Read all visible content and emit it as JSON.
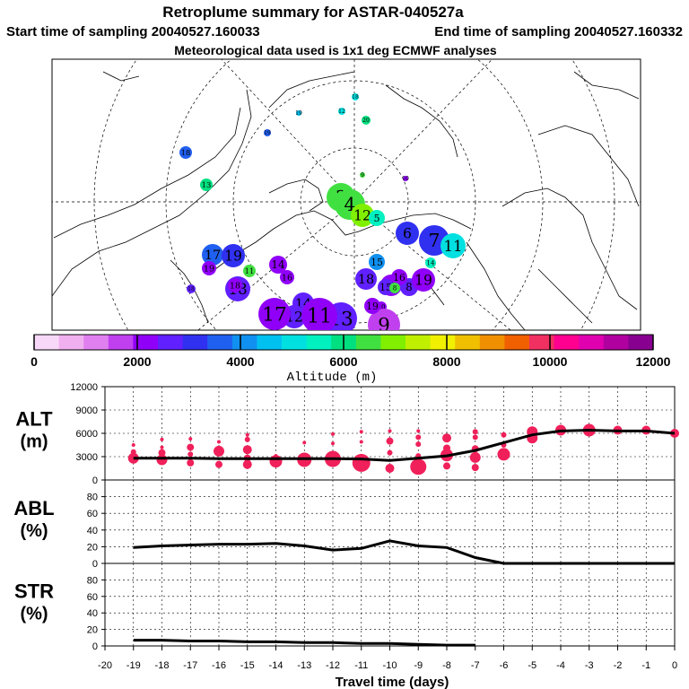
{
  "header": {
    "title": "Retroplume summary for ASTAR-040527a",
    "start": "Start time of sampling 20040527.160033",
    "end": "End time of sampling 20040527.160332",
    "met": "Meteorological data used is 1x1 deg ECMWF analyses"
  },
  "map": {
    "clusters": [
      {
        "label": "18",
        "alt": 5200
      },
      {
        "label": "12",
        "alt": 5000
      },
      {
        "label": "19",
        "alt": 4600
      },
      {
        "label": "20",
        "alt": 6400
      },
      {
        "label": "19",
        "alt": 3800
      },
      {
        "label": "18",
        "alt": 3800
      },
      {
        "label": "13",
        "alt": 6200
      },
      {
        "label": "3",
        "alt": 6600
      },
      {
        "label": "4",
        "alt": 6500
      },
      {
        "label": "12",
        "alt": 7100
      },
      {
        "label": "5",
        "alt": 5600
      },
      {
        "label": "6",
        "alt": 3200
      },
      {
        "label": "7",
        "alt": 3400
      },
      {
        "label": "11",
        "alt": 5000
      },
      {
        "label": "14",
        "alt": 5600
      },
      {
        "label": "15",
        "alt": 4000
      },
      {
        "label": "17",
        "alt": 3500
      },
      {
        "label": "19",
        "alt": 3200
      },
      {
        "label": "18",
        "alt": 2700
      },
      {
        "label": "11",
        "alt": 6600
      },
      {
        "label": "16",
        "alt": 2400
      },
      {
        "label": "16",
        "alt": 2400
      },
      {
        "label": "8",
        "alt": 2700
      },
      {
        "label": "19",
        "alt": 2400
      },
      {
        "label": "18",
        "alt": 2600
      },
      {
        "label": "10",
        "alt": 2400
      },
      {
        "label": "9",
        "alt": 1700
      },
      {
        "label": "15",
        "alt": 2800
      },
      {
        "label": "14",
        "alt": 2700
      },
      {
        "label": "12",
        "alt": 2600
      },
      {
        "label": "13",
        "alt": 2500
      },
      {
        "label": "11",
        "alt": 2300
      },
      {
        "label": "17",
        "alt": 2300
      },
      {
        "label": "19",
        "alt": 2200
      },
      {
        "label": "16",
        "alt": 2300
      },
      {
        "label": "14",
        "alt": 2200
      },
      {
        "label": "18",
        "alt": 2000
      },
      {
        "label": "9",
        "alt": 6600
      },
      {
        "label": "10",
        "alt": 2000
      },
      {
        "label": "8",
        "alt": 6600
      },
      {
        "label": "19",
        "alt": 2200
      },
      {
        "label": "18",
        "alt": 2600
      }
    ]
  },
  "colorbar": {
    "label": "Altitude (m)",
    "ticks": [
      "0",
      "2000",
      "4000",
      "6000",
      "8000",
      "10000",
      "12000"
    ],
    "colors": [
      "#f8d8f8",
      "#f0b0f0",
      "#e080f0",
      "#c040f0",
      "#9000f8",
      "#6020ff",
      "#3030f0",
      "#2060f0",
      "#1090f0",
      "#00c0f0",
      "#00e0e0",
      "#00f0c0",
      "#00e080",
      "#40e040",
      "#80f000",
      "#c0f000",
      "#f0f000",
      "#f0c000",
      "#f09000",
      "#f06000",
      "#f03060",
      "#ff0090",
      "#e000b0",
      "#b000a0",
      "#880090"
    ]
  },
  "chart_data": [
    {
      "type": "scatter",
      "panel_label": [
        "ALT",
        "(m)"
      ],
      "ylim": [
        0,
        12000
      ],
      "yticks": [
        "0",
        "3000",
        "6000",
        "9000",
        "12000"
      ],
      "xlim": [
        -20,
        0
      ],
      "line": {
        "x": [
          -19,
          -18,
          -17,
          -16,
          -15,
          -14,
          -13,
          -12,
          -11,
          -10,
          -9,
          -8,
          -7,
          -6,
          -5,
          -4,
          -3,
          -2,
          -1,
          0
        ],
        "y": [
          2800,
          2800,
          2800,
          2750,
          2750,
          2750,
          2750,
          2750,
          2700,
          2500,
          2800,
          3100,
          3800,
          4800,
          5800,
          6300,
          6400,
          6300,
          6300,
          6000
        ]
      },
      "points": [
        {
          "x": -19,
          "y": 2800,
          "r": 6
        },
        {
          "x": -19,
          "y": 3600,
          "r": 3
        },
        {
          "x": -19,
          "y": 4500,
          "r": 2
        },
        {
          "x": -18,
          "y": 2600,
          "r": 6
        },
        {
          "x": -18,
          "y": 3500,
          "r": 4
        },
        {
          "x": -18,
          "y": 4200,
          "r": 2
        },
        {
          "x": -18,
          "y": 5200,
          "r": 2
        },
        {
          "x": -17,
          "y": 2200,
          "r": 4
        },
        {
          "x": -17,
          "y": 3300,
          "r": 3
        },
        {
          "x": -17,
          "y": 4200,
          "r": 4
        },
        {
          "x": -17,
          "y": 5300,
          "r": 2
        },
        {
          "x": -16,
          "y": 2000,
          "r": 4
        },
        {
          "x": -16,
          "y": 3700,
          "r": 6
        },
        {
          "x": -16,
          "y": 4900,
          "r": 2
        },
        {
          "x": -15,
          "y": 2000,
          "r": 5
        },
        {
          "x": -15,
          "y": 2800,
          "r": 4
        },
        {
          "x": -15,
          "y": 3900,
          "r": 5
        },
        {
          "x": -15,
          "y": 5200,
          "r": 3
        },
        {
          "x": -15,
          "y": 5800,
          "r": 2
        },
        {
          "x": -14,
          "y": 2400,
          "r": 7
        },
        {
          "x": -14,
          "y": 3100,
          "r": 2
        },
        {
          "x": -13,
          "y": 2600,
          "r": 8
        },
        {
          "x": -13,
          "y": 4800,
          "r": 2
        },
        {
          "x": -12,
          "y": 2700,
          "r": 9
        },
        {
          "x": -12,
          "y": 3500,
          "r": 2
        },
        {
          "x": -12,
          "y": 4700,
          "r": 2
        },
        {
          "x": -12,
          "y": 5900,
          "r": 2
        },
        {
          "x": -11,
          "y": 2200,
          "r": 10
        },
        {
          "x": -11,
          "y": 4900,
          "r": 2
        },
        {
          "x": -11,
          "y": 6200,
          "r": 2
        },
        {
          "x": -10,
          "y": 1500,
          "r": 5
        },
        {
          "x": -10,
          "y": 3500,
          "r": 3
        },
        {
          "x": -10,
          "y": 5000,
          "r": 4
        },
        {
          "x": -10,
          "y": 6300,
          "r": 2
        },
        {
          "x": -9,
          "y": 1700,
          "r": 9
        },
        {
          "x": -9,
          "y": 3100,
          "r": 3
        },
        {
          "x": -9,
          "y": 4600,
          "r": 3
        },
        {
          "x": -9,
          "y": 5500,
          "r": 3
        },
        {
          "x": -9,
          "y": 6300,
          "r": 2
        },
        {
          "x": -8,
          "y": 1800,
          "r": 4
        },
        {
          "x": -8,
          "y": 3200,
          "r": 7
        },
        {
          "x": -8,
          "y": 4100,
          "r": 4
        },
        {
          "x": -8,
          "y": 5400,
          "r": 5
        },
        {
          "x": -7,
          "y": 1600,
          "r": 4
        },
        {
          "x": -7,
          "y": 2900,
          "r": 6
        },
        {
          "x": -7,
          "y": 4000,
          "r": 4
        },
        {
          "x": -7,
          "y": 5500,
          "r": 3
        },
        {
          "x": -7,
          "y": 6200,
          "r": 3
        },
        {
          "x": -6,
          "y": 3300,
          "r": 7
        },
        {
          "x": -6,
          "y": 4500,
          "r": 3
        },
        {
          "x": -6,
          "y": 5800,
          "r": 3
        },
        {
          "x": -5,
          "y": 5400,
          "r": 6
        },
        {
          "x": -5,
          "y": 6200,
          "r": 6
        },
        {
          "x": -4,
          "y": 6400,
          "r": 6
        },
        {
          "x": -3,
          "y": 6400,
          "r": 7
        },
        {
          "x": -2,
          "y": 6400,
          "r": 5
        },
        {
          "x": -1,
          "y": 6400,
          "r": 5
        },
        {
          "x": 0,
          "y": 6000,
          "r": 5
        }
      ]
    },
    {
      "type": "line",
      "panel_label": [
        "ABL",
        "(%)"
      ],
      "ylim": [
        0,
        100
      ],
      "yticks": [
        "0",
        "20",
        "40",
        "60",
        "80"
      ],
      "xlim": [
        -20,
        0
      ],
      "x": [
        -19,
        -18,
        -17,
        -16,
        -15,
        -14,
        -13,
        -12,
        -11,
        -10,
        -9,
        -8,
        -7,
        -6,
        -5,
        -4,
        -3,
        -2,
        -1,
        0
      ],
      "y": [
        19,
        21,
        22,
        23,
        23,
        24,
        21,
        16,
        18,
        27,
        21,
        19,
        7,
        0,
        0,
        0,
        0,
        0,
        0,
        0
      ]
    },
    {
      "type": "line",
      "panel_label": [
        "STR",
        "(%)"
      ],
      "ylim": [
        0,
        100
      ],
      "yticks": [
        "0",
        "20",
        "40",
        "60",
        "80"
      ],
      "xlim": [
        -20,
        0
      ],
      "x": [
        -19,
        -18,
        -17,
        -16,
        -15,
        -14,
        -13,
        -12,
        -11,
        -10,
        -9,
        -8,
        -7
      ],
      "y": [
        7,
        7,
        6,
        6,
        5,
        5,
        4,
        4,
        3,
        3,
        2,
        1,
        1
      ]
    }
  ],
  "xaxis": {
    "title": "Travel time (days)",
    "ticks": [
      "-20",
      "-19",
      "-18",
      "-17",
      "-16",
      "-15",
      "-14",
      "-13",
      "-12",
      "-11",
      "-10",
      "-9",
      "-8",
      "-7",
      "-6",
      "-5",
      "-4",
      "-3",
      "-2",
      "-1",
      "0"
    ]
  }
}
